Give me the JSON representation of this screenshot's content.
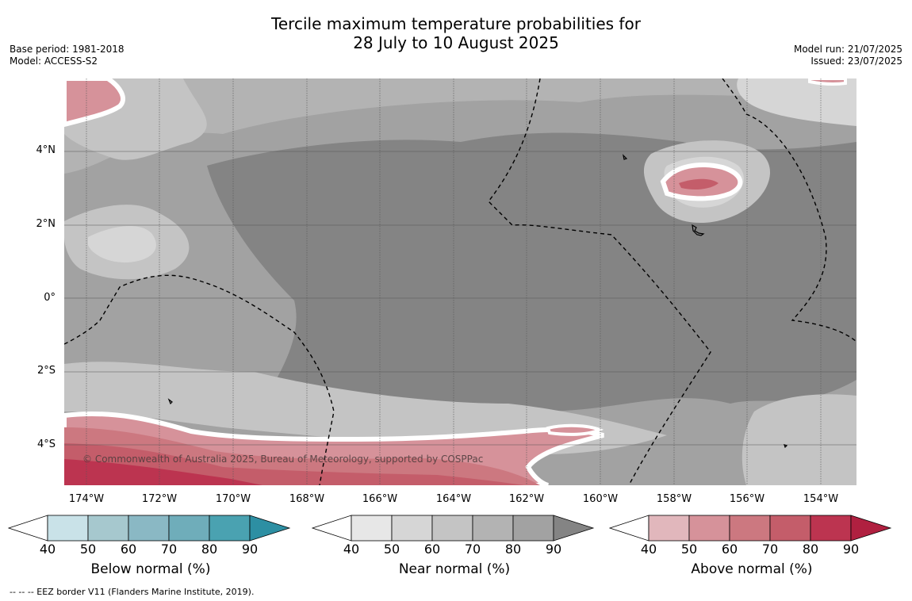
{
  "title_line1": "Tercile maximum temperature probabilities for",
  "title_line2": "28 July to 10 August 2025",
  "base_period": "Base period: 1981-2018",
  "model": "Model: ACCESS-S2",
  "model_run": "Model run: 21/07/2025",
  "issued": "Issued: 23/07/2025",
  "lat_ticks": [
    "4°N",
    "2°N",
    "0°",
    "2°S",
    "4°S"
  ],
  "lon_ticks": [
    "174°W",
    "172°W",
    "170°W",
    "168°W",
    "166°W",
    "164°W",
    "162°W",
    "160°W",
    "158°W",
    "156°W",
    "154°W"
  ],
  "copyright": "© Commonwealth of Australia 2025, Bureau of Meteorology, supported by COSPPac",
  "footnote": "--  --  -- EEZ border V11 (Flanders Marine Institute, 2019).",
  "colorbars": {
    "below": {
      "label": "Below normal (%)",
      "ticks": [
        "40",
        "50",
        "60",
        "70",
        "80",
        "90"
      ],
      "colors": [
        "#ffffff",
        "#c9e2e8",
        "#a6c8ce",
        "#8ab8c4",
        "#6fadba",
        "#4aa2b1",
        "#2d8fa3"
      ]
    },
    "near": {
      "label": "Near normal (%)",
      "ticks": [
        "40",
        "50",
        "60",
        "70",
        "80",
        "90"
      ],
      "colors": [
        "#ffffff",
        "#e7e7e7",
        "#d6d6d6",
        "#c4c4c4",
        "#b3b3b3",
        "#a2a2a2",
        "#848484"
      ]
    },
    "above": {
      "label": "Above normal (%)",
      "ticks": [
        "40",
        "50",
        "60",
        "70",
        "80",
        "90"
      ],
      "colors": [
        "#ffffff",
        "#e1b7bc",
        "#d6929a",
        "#cc7880",
        "#c45d6a",
        "#bc3450",
        "#b02040"
      ]
    }
  },
  "map_colors": {
    "near_90": "#848484",
    "near_80": "#a2a2a2",
    "near_70": "#b3b3b3",
    "near_60": "#c4c4c4",
    "near_50": "#d6d6d6",
    "above_50": "#d6929a",
    "above_60": "#cc7880",
    "above_70": "#c45d6a",
    "above_80": "#bc3450",
    "above_90": "#b02040"
  }
}
